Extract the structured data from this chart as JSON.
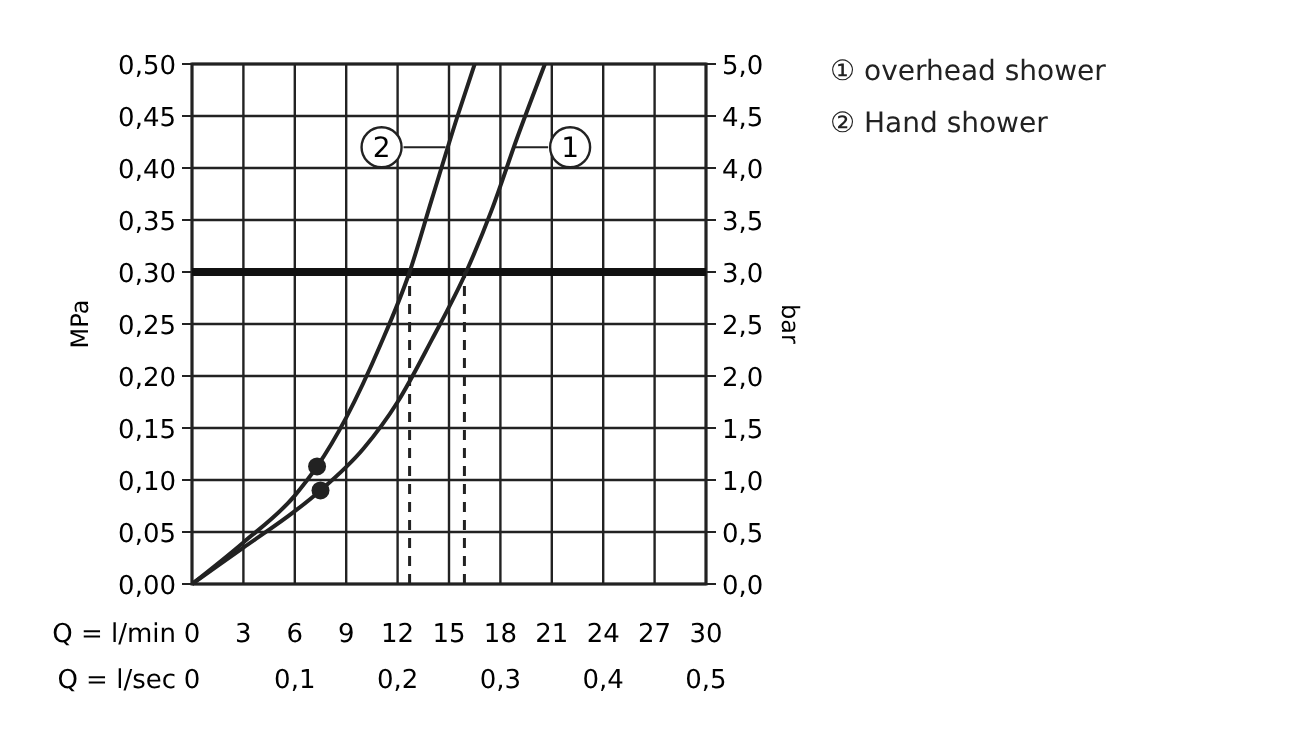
{
  "chart_data": {
    "type": "line",
    "xlabel": "Q = l/min",
    "x2label": "Q = l/sec",
    "ylabel": "MPa",
    "y2label": "bar",
    "xlim": [
      0,
      30
    ],
    "xticks": [
      0,
      3,
      6,
      9,
      12,
      15,
      18,
      21,
      24,
      27,
      30
    ],
    "x2lim": [
      0,
      0.5
    ],
    "x2ticks": [
      {
        "value": 0,
        "label": "0"
      },
      {
        "value": 0.1,
        "label": "0,1"
      },
      {
        "value": 0.2,
        "label": "0,2"
      },
      {
        "value": 0.3,
        "label": "0,3"
      },
      {
        "value": 0.4,
        "label": "0,4"
      },
      {
        "value": 0.5,
        "label": "0,5"
      }
    ],
    "ylim": [
      0,
      0.5
    ],
    "yticks": [
      {
        "value": 0,
        "label": "0,00"
      },
      {
        "value": 0.05,
        "label": "0,05"
      },
      {
        "value": 0.1,
        "label": "0,10"
      },
      {
        "value": 0.15,
        "label": "0,15"
      },
      {
        "value": 0.2,
        "label": "0,20"
      },
      {
        "value": 0.25,
        "label": "0,25"
      },
      {
        "value": 0.3,
        "label": "0,30"
      },
      {
        "value": 0.35,
        "label": "0,35"
      },
      {
        "value": 0.4,
        "label": "0,40"
      },
      {
        "value": 0.45,
        "label": "0,45"
      },
      {
        "value": 0.5,
        "label": "0,50"
      }
    ],
    "y2lim": [
      0,
      5
    ],
    "y2ticks": [
      {
        "value": 0,
        "label": "0,0"
      },
      {
        "value": 0.5,
        "label": "0,5"
      },
      {
        "value": 1,
        "label": "1,0"
      },
      {
        "value": 1.5,
        "label": "1,5"
      },
      {
        "value": 2,
        "label": "2,0"
      },
      {
        "value": 2.5,
        "label": "2,5"
      },
      {
        "value": 3,
        "label": "3,0"
      },
      {
        "value": 3.5,
        "label": "3,5"
      },
      {
        "value": 4,
        "label": "4,0"
      },
      {
        "value": 4.5,
        "label": "4,5"
      },
      {
        "value": 5,
        "label": "5,0"
      }
    ],
    "grid": true,
    "legend": "right",
    "marker": "none",
    "line_style": "solid",
    "series": [
      {
        "name": "① overhead shower",
        "color": "#222222",
        "x": [
          0,
          3,
          6,
          7.5,
          10,
          12,
          14,
          16,
          17.5,
          19,
          20.6
        ],
        "values": [
          0,
          0.035,
          0.07,
          0.09,
          0.13,
          0.175,
          0.235,
          0.3,
          0.36,
          0.43,
          0.5
        ]
      },
      {
        "name": "② Hand shower",
        "color": "#222222",
        "x": [
          0,
          3,
          6,
          7.3,
          9,
          11,
          12.7,
          14,
          15.5,
          16.5
        ],
        "values": [
          0,
          0.04,
          0.085,
          0.113,
          0.16,
          0.23,
          0.3,
          0.37,
          0.45,
          0.5
        ]
      },
      {
        "type": "scatter",
        "marker": "circle",
        "color": "#222222",
        "x": [
          7.3,
          7.5
        ],
        "values": [
          0.113,
          0.09
        ]
      }
    ],
    "ref_lines": [
      {
        "axis": "y",
        "value": 0.3,
        "color": "#111111",
        "line_style": "solid"
      },
      {
        "axis": "x",
        "value": 12.7,
        "color": "#222222",
        "line_style": "dashed"
      },
      {
        "axis": "x",
        "value": 15.9,
        "color": "#222222",
        "line_style": "dashed"
      }
    ],
    "annotations": [
      {
        "text": "1",
        "x": 18.8,
        "y": 0.42
      },
      {
        "text": "2",
        "x": 14.8,
        "y": 0.42
      }
    ]
  }
}
